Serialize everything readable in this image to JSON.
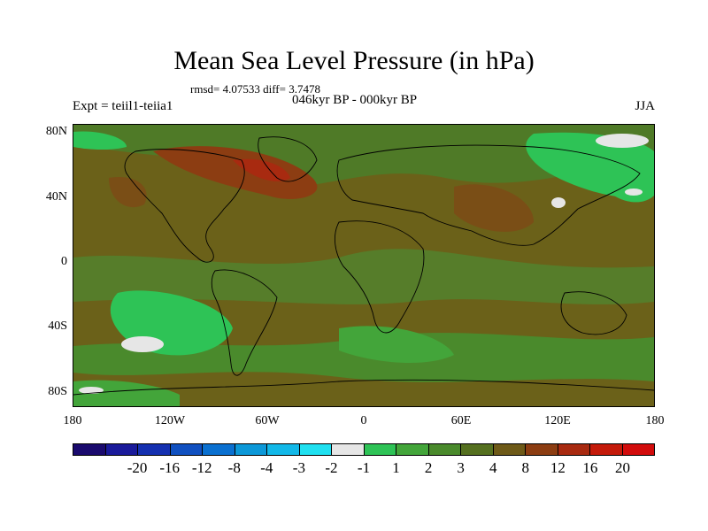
{
  "title": "Mean Sea Level Pressure (in hPa)",
  "stats_line": "rmsd= 4.07533 diff= 3.7478",
  "experiment_label": "Expt = teiil1-teiia1",
  "subtitle": "046kyr BP - 000kyr BP",
  "season": "JJA",
  "lat_labels": [
    "80N",
    "40N",
    "0",
    "40S",
    "80S"
  ],
  "lon_labels": [
    "180",
    "120W",
    "60W",
    "0",
    "60E",
    "120E",
    "180"
  ],
  "colorbar": {
    "colors": [
      "#1a0a6e",
      "#1a1a9a",
      "#1530b0",
      "#1050c0",
      "#0a70d0",
      "#0c98d8",
      "#12b8e8",
      "#20e0f0",
      "#e6e6e6",
      "#2ec356",
      "#43a53a",
      "#4a8a2c",
      "#557020",
      "#6e5a18",
      "#8c3d12",
      "#a82a10",
      "#c41a0a",
      "#d20c0c"
    ],
    "labels": [
      "-20",
      "-16",
      "-12",
      "-8",
      "-4",
      "-3",
      "-2",
      "-1",
      "1",
      "2",
      "3",
      "4",
      "8",
      "12",
      "16",
      "20"
    ]
  }
}
